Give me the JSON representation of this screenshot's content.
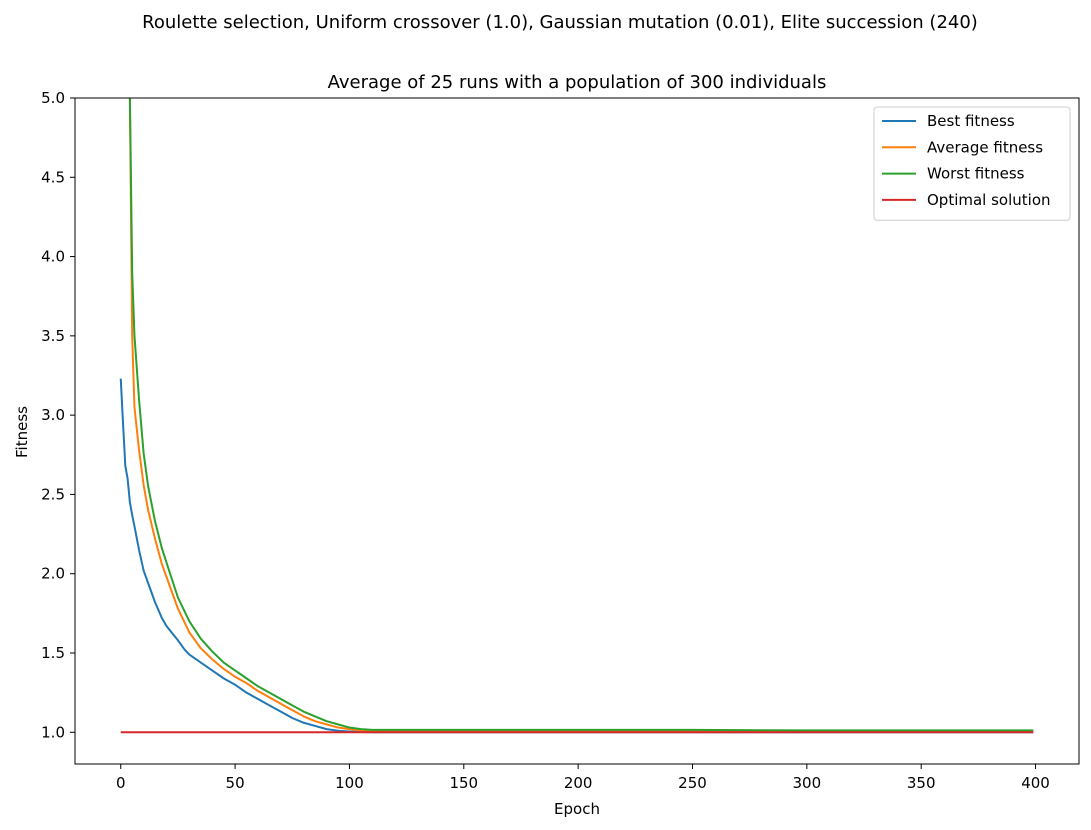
{
  "figure": {
    "suptitle": "Roulette selection, Uniform crossover (1.0), Gaussian mutation (0.01), Elite succession (240)"
  },
  "chart_data": {
    "type": "line",
    "title": "Average of 25 runs with a population of 300 individuals",
    "xlabel": "Epoch",
    "ylabel": "Fitness",
    "xlim": [
      -20,
      419
    ],
    "ylim": [
      0.8,
      5.0
    ],
    "xticks": [
      "0",
      "50",
      "100",
      "150",
      "200",
      "250",
      "300",
      "350",
      "400"
    ],
    "yticks": [
      "1.0",
      "1.5",
      "2.0",
      "2.5",
      "3.0",
      "3.5",
      "4.0",
      "4.5",
      "5.0"
    ],
    "grid": false,
    "legend": {
      "placement": "top-right"
    },
    "series": [
      {
        "name": "Best fitness",
        "color": "#1f77b4",
        "x": [
          0,
          1,
          2,
          3,
          4,
          5,
          6,
          8,
          10,
          12,
          15,
          18,
          20,
          25,
          28,
          30,
          35,
          40,
          45,
          50,
          55,
          60,
          65,
          70,
          75,
          80,
          85,
          90,
          95,
          100,
          105,
          110,
          120,
          150,
          200,
          250,
          300,
          350,
          399
        ],
        "values": [
          3.23,
          2.95,
          2.68,
          2.6,
          2.45,
          2.37,
          2.3,
          2.15,
          2.02,
          1.94,
          1.82,
          1.72,
          1.67,
          1.58,
          1.52,
          1.49,
          1.44,
          1.39,
          1.34,
          1.3,
          1.25,
          1.21,
          1.17,
          1.13,
          1.09,
          1.06,
          1.04,
          1.02,
          1.01,
          1.005,
          1.002,
          1.0,
          1.0,
          1.0,
          1.0,
          1.0,
          1.0,
          1.0,
          1.0
        ]
      },
      {
        "name": "Average fitness",
        "color": "#ff7f0e",
        "x": [
          4,
          5,
          6,
          8,
          10,
          12,
          15,
          18,
          20,
          25,
          30,
          35,
          40,
          45,
          50,
          55,
          60,
          65,
          70,
          75,
          80,
          85,
          90,
          95,
          100,
          105,
          110,
          120,
          150,
          200,
          250,
          300,
          350,
          399
        ],
        "values": [
          5.0,
          3.5,
          3.05,
          2.78,
          2.56,
          2.4,
          2.22,
          2.06,
          1.98,
          1.78,
          1.63,
          1.53,
          1.46,
          1.4,
          1.35,
          1.31,
          1.26,
          1.22,
          1.18,
          1.14,
          1.1,
          1.07,
          1.05,
          1.03,
          1.02,
          1.012,
          1.01,
          1.01,
          1.01,
          1.01,
          1.01,
          1.008,
          1.008,
          1.008
        ]
      },
      {
        "name": "Worst fitness",
        "color": "#2ca02c",
        "x": [
          4,
          5,
          6,
          8,
          10,
          12,
          15,
          18,
          20,
          25,
          30,
          35,
          40,
          45,
          50,
          55,
          60,
          65,
          70,
          75,
          80,
          85,
          90,
          95,
          100,
          105,
          110,
          120,
          150,
          200,
          250,
          300,
          350,
          399
        ],
        "values": [
          5.0,
          3.9,
          3.5,
          3.1,
          2.76,
          2.55,
          2.33,
          2.16,
          2.07,
          1.85,
          1.7,
          1.59,
          1.51,
          1.44,
          1.39,
          1.34,
          1.29,
          1.25,
          1.21,
          1.17,
          1.13,
          1.1,
          1.07,
          1.05,
          1.03,
          1.02,
          1.015,
          1.015,
          1.015,
          1.015,
          1.015,
          1.012,
          1.012,
          1.012
        ]
      },
      {
        "name": "Optimal solution",
        "color": "#d62728",
        "x": [
          0,
          399
        ],
        "values": [
          1.0,
          1.0
        ]
      }
    ]
  }
}
